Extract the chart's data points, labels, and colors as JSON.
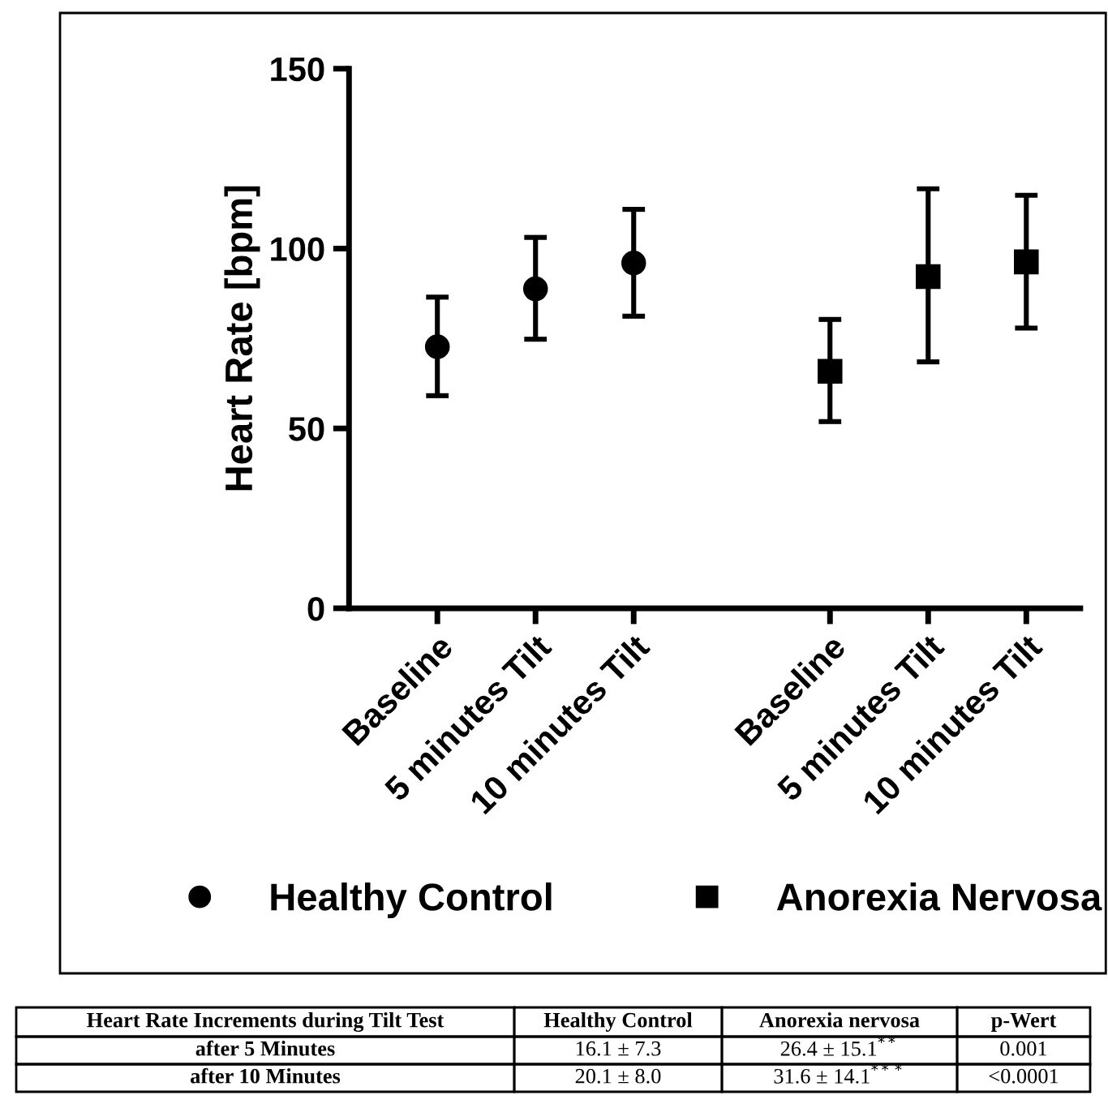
{
  "chart_data": {
    "type": "scatter",
    "ylabel": "Heart Rate [bpm]",
    "categories": [
      "Baseline",
      "5 minutes Tilt",
      "10 minutes Tilt",
      null,
      "Baseline",
      "5 minutes Tilt",
      "10 minutes Tilt"
    ],
    "series": [
      {
        "name": "Healthy Control",
        "color": "#000000",
        "marker": "circle",
        "values": [
          72.7,
          88.8,
          96.0,
          null,
          null,
          null,
          null
        ],
        "errors": [
          [
            59.1,
            86.5
          ],
          [
            74.8,
            103.1
          ],
          [
            81.2,
            110.9
          ],
          null,
          null,
          null,
          null
        ]
      },
      {
        "name": "Anorexia Nervosa",
        "color": "#000000",
        "marker": "square",
        "values": [
          null,
          null,
          null,
          null,
          65.9,
          92.2,
          96.3
        ],
        "errors": [
          null,
          null,
          null,
          null,
          [
            51.9,
            80.3
          ],
          [
            68.5,
            116.6
          ],
          [
            77.9,
            114.8
          ]
        ]
      }
    ],
    "ylim": [
      0,
      150
    ],
    "yticks": [
      0,
      50,
      100,
      150
    ],
    "grid": false,
    "legend": "bottom",
    "annotations": [
      "Heart Rate Increments during Tilt Test",
      "Healthy Control",
      "Anorexia nervosa",
      "p-Wert",
      "after 5 Minutes",
      "16.1 ± 7.3",
      "26.4 ± 15.1$^{**}$",
      "0.001",
      "after 10 Minutes",
      "20.1 ± 8.0",
      "31.6 ± 14.1$^{***}$",
      "<0.0001"
    ]
  }
}
